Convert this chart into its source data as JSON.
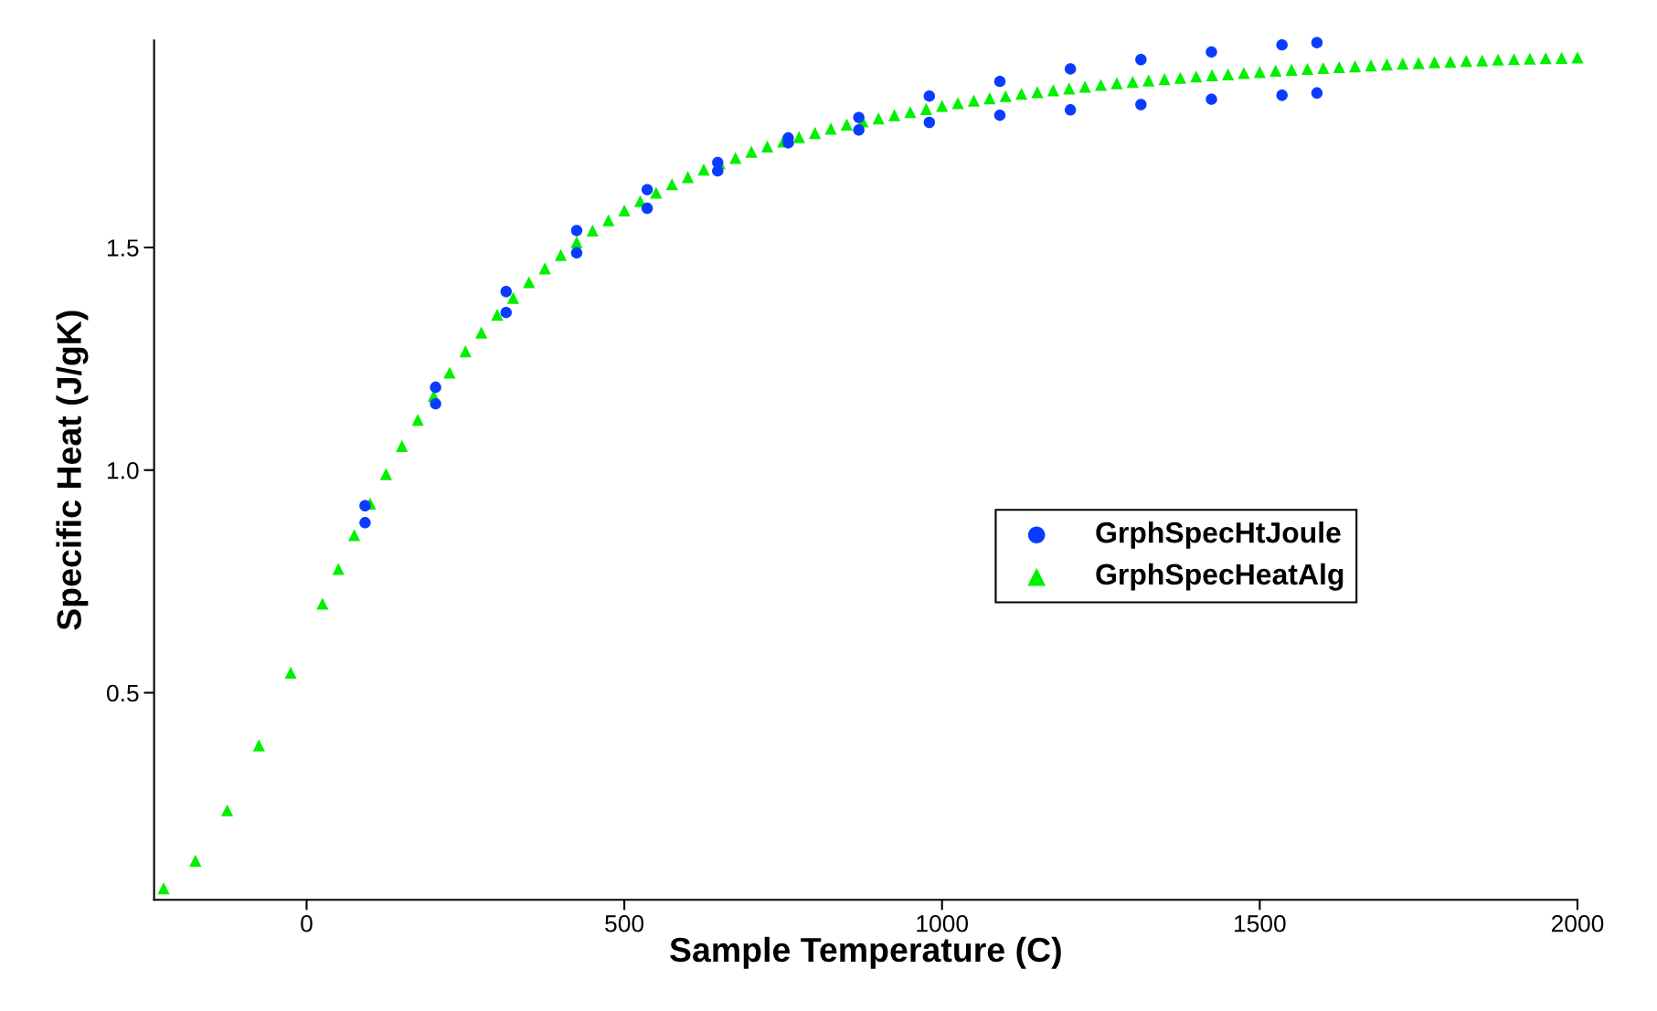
{
  "chart_data": {
    "type": "scatter",
    "xlabel": "Sample Temperature (C)",
    "ylabel": "Specific Heat (J/gK)",
    "xlim": [
      -240,
      2000
    ],
    "xticks": [
      0,
      500,
      1000,
      1500,
      2000
    ],
    "ylim": [
      0.035,
      1.965
    ],
    "yticks": [
      0.5,
      {
        "value": 1.0,
        "label": "1.0"
      },
      1.5
    ],
    "grid": false,
    "legend": "right",
    "series": [
      {
        "name": "GrphSpecHtJoule",
        "color": "#0a3cff",
        "marker": "circle",
        "x": [
          92,
          92,
          203,
          203,
          314,
          314,
          425,
          425,
          536,
          536,
          647,
          647,
          758,
          758,
          869,
          869,
          980,
          980,
          1091,
          1091,
          1202,
          1202,
          1313,
          1313,
          1424,
          1424,
          1535,
          1535,
          1590,
          1590
        ],
        "values": [
          0.92,
          0.882,
          1.186,
          1.149,
          1.401,
          1.354,
          1.538,
          1.488,
          1.63,
          1.588,
          1.691,
          1.672,
          1.746,
          1.735,
          1.792,
          1.764,
          1.84,
          1.781,
          1.873,
          1.797,
          1.901,
          1.809,
          1.922,
          1.821,
          1.939,
          1.833,
          1.955,
          1.842,
          1.96,
          1.847
        ]
      },
      {
        "name": "GrphSpecHeatAlg",
        "color": "#00f000",
        "marker": "triangle",
        "x": [
          -225,
          -175,
          -125,
          -75,
          -25,
          25,
          50,
          75,
          100,
          125,
          150,
          175,
          200,
          225,
          250,
          275,
          300,
          325,
          350,
          375,
          400,
          425,
          450,
          475,
          500,
          525,
          550,
          575,
          600,
          625,
          650,
          675,
          700,
          725,
          750,
          775,
          800,
          825,
          850,
          875,
          900,
          925,
          950,
          975,
          1000,
          1025,
          1050,
          1075,
          1100,
          1125,
          1150,
          1175,
          1200,
          1225,
          1250,
          1275,
          1300,
          1325,
          1350,
          1375,
          1400,
          1425,
          1450,
          1475,
          1500,
          1525,
          1550,
          1575,
          1600,
          1625,
          1650,
          1675,
          1700,
          1725,
          1750,
          1775,
          1800,
          1825,
          1850,
          1875,
          1900,
          1925,
          1950,
          1975,
          2000
        ],
        "values": [
          0.061,
          0.123,
          0.236,
          0.382,
          0.545,
          0.7,
          0.778,
          0.854,
          0.925,
          0.991,
          1.054,
          1.113,
          1.167,
          1.219,
          1.267,
          1.309,
          1.349,
          1.387,
          1.422,
          1.453,
          1.483,
          1.512,
          1.538,
          1.561,
          1.583,
          1.604,
          1.623,
          1.642,
          1.658,
          1.675,
          1.689,
          1.701,
          1.715,
          1.727,
          1.738,
          1.748,
          1.757,
          1.767,
          1.776,
          1.783,
          1.79,
          1.797,
          1.804,
          1.811,
          1.818,
          1.824,
          1.83,
          1.835,
          1.84,
          1.845,
          1.849,
          1.853,
          1.857,
          1.861,
          1.865,
          1.869,
          1.872,
          1.875,
          1.878,
          1.881,
          1.884,
          1.887,
          1.889,
          1.892,
          1.894,
          1.897,
          1.899,
          1.901,
          1.903,
          1.905,
          1.907,
          1.909,
          1.911,
          1.913,
          1.914,
          1.916,
          1.917,
          1.919,
          1.92,
          1.922,
          1.923,
          1.924,
          1.925,
          1.926,
          1.927
        ]
      }
    ]
  }
}
